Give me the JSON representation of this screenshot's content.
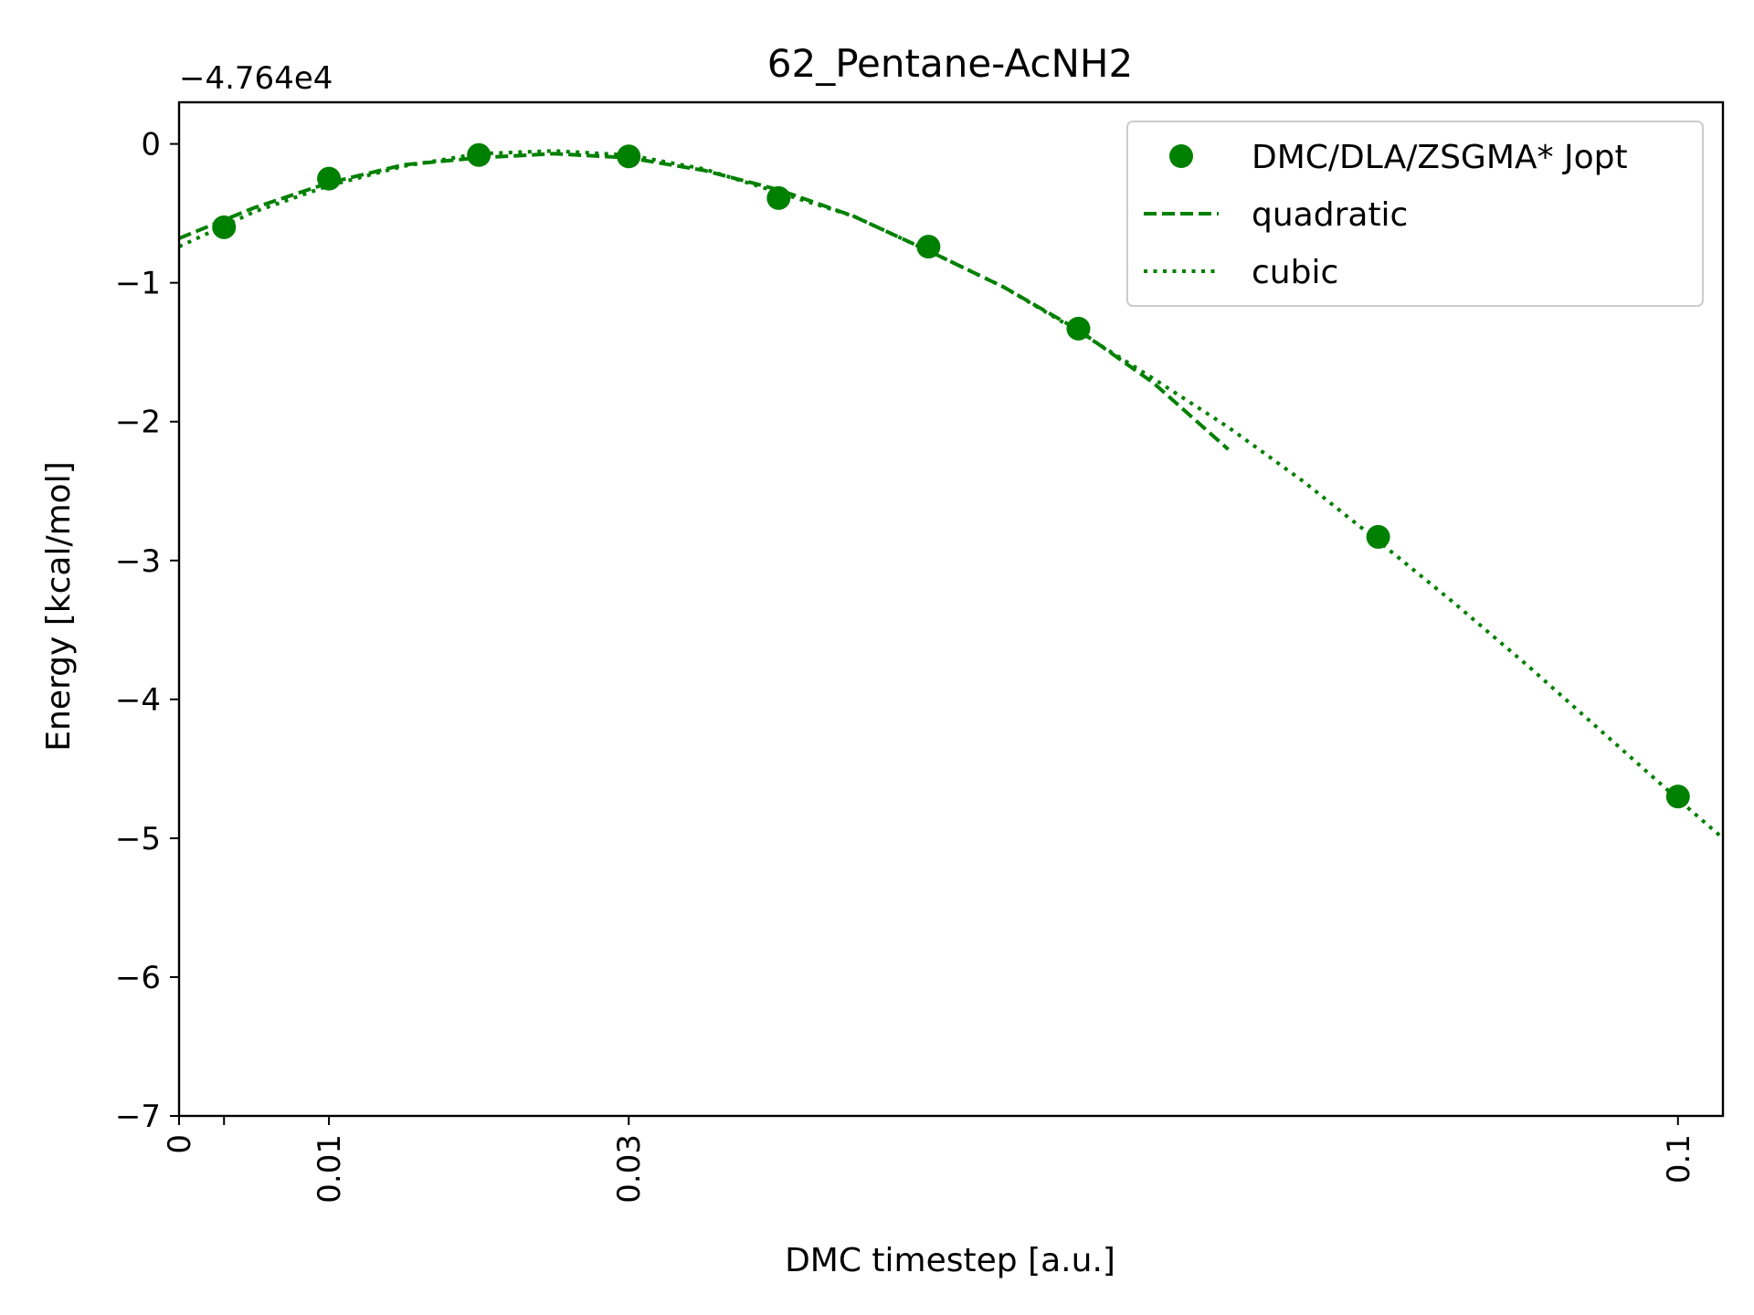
{
  "chart_data": {
    "type": "scatter",
    "title": "62_Pentane-AcNH2",
    "xlabel": "DMC timestep [a.u.]",
    "ylabel": "Energy [kcal/mol]",
    "offset_text": "−4.764e4",
    "xlim": [
      0,
      0.103
    ],
    "ylim": [
      -7,
      0.3
    ],
    "x_ticks": [
      0,
      0.003,
      0.01,
      0.03,
      0.1
    ],
    "x_tick_labels": [
      "0",
      "",
      "0.01",
      "0.03",
      "0.1"
    ],
    "y_ticks": [
      0,
      -1,
      -2,
      -3,
      -4,
      -5,
      -6,
      -7
    ],
    "y_tick_labels": [
      "0",
      "−1",
      "−2",
      "−3",
      "−4",
      "−5",
      "−6",
      "−7"
    ],
    "color": "#008000",
    "legend_position": "top-right",
    "series": [
      {
        "name": "DMC/DLA/ZSGMA* Jopt",
        "style": "markers",
        "x": [
          0.003,
          0.01,
          0.02,
          0.03,
          0.04,
          0.05,
          0.06,
          0.08,
          0.1
        ],
        "y": [
          -0.6,
          -0.25,
          -0.08,
          -0.09,
          -0.39,
          -0.74,
          -1.33,
          -2.83,
          -4.7
        ]
      },
      {
        "name": "quadratic",
        "style": "dashed",
        "x": [
          0,
          0.005,
          0.01,
          0.015,
          0.02,
          0.025,
          0.03,
          0.035,
          0.04,
          0.045,
          0.05,
          0.055,
          0.06,
          0.065,
          0.07
        ],
        "y": [
          -0.68,
          -0.46,
          -0.28,
          -0.15,
          -0.1,
          -0.07,
          -0.1,
          -0.19,
          -0.33,
          -0.52,
          -0.77,
          -1.03,
          -1.34,
          -1.72,
          -2.2
        ]
      },
      {
        "name": "cubic",
        "style": "dotted",
        "x": [
          0,
          0.005,
          0.01,
          0.015,
          0.02,
          0.025,
          0.03,
          0.035,
          0.04,
          0.045,
          0.05,
          0.055,
          0.06,
          0.065,
          0.07,
          0.075,
          0.08,
          0.085,
          0.09,
          0.095,
          0.1,
          0.103
        ],
        "y": [
          -0.74,
          -0.49,
          -0.3,
          -0.16,
          -0.07,
          -0.05,
          -0.08,
          -0.18,
          -0.35,
          -0.52,
          -0.77,
          -1.03,
          -1.35,
          -1.69,
          -2.04,
          -2.43,
          -2.86,
          -3.3,
          -3.76,
          -4.24,
          -4.72,
          -5.0
        ]
      }
    ]
  }
}
